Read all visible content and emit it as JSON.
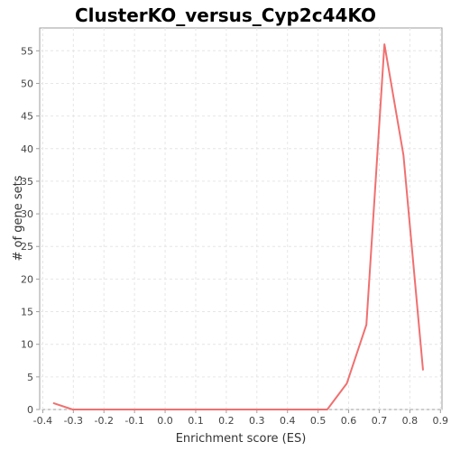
{
  "chart_data": {
    "type": "line",
    "title": "ClusterKO_versus_Cyp2c44KO",
    "xlabel": "Enrichment score (ES)",
    "ylabel": "# of gene sets",
    "xlim": [
      -0.41,
      0.905
    ],
    "ylim": [
      0,
      58.5
    ],
    "x_ticks": [
      "-0.4",
      "-0.3",
      "-0.2",
      "-0.1",
      "0.0",
      "0.1",
      "0.2",
      "0.3",
      "0.4",
      "0.5",
      "0.6",
      "0.7",
      "0.8",
      "0.9"
    ],
    "y_ticks": [
      "0",
      "5",
      "10",
      "15",
      "20",
      "25",
      "30",
      "35",
      "40",
      "45",
      "50",
      "55"
    ],
    "grid": true,
    "series": [
      {
        "color": "#f07070",
        "x": [
          -0.366,
          -0.302,
          -0.238,
          -0.174,
          -0.11,
          -0.046,
          0.018,
          0.082,
          0.146,
          0.21,
          0.274,
          0.338,
          0.402,
          0.466,
          0.53,
          0.594,
          0.658,
          0.717,
          0.779,
          0.843
        ],
        "y": [
          1,
          0,
          0,
          0,
          0,
          0,
          0,
          0,
          0,
          0,
          0,
          0,
          0,
          0,
          0,
          4,
          13,
          56,
          39,
          6
        ]
      }
    ]
  }
}
